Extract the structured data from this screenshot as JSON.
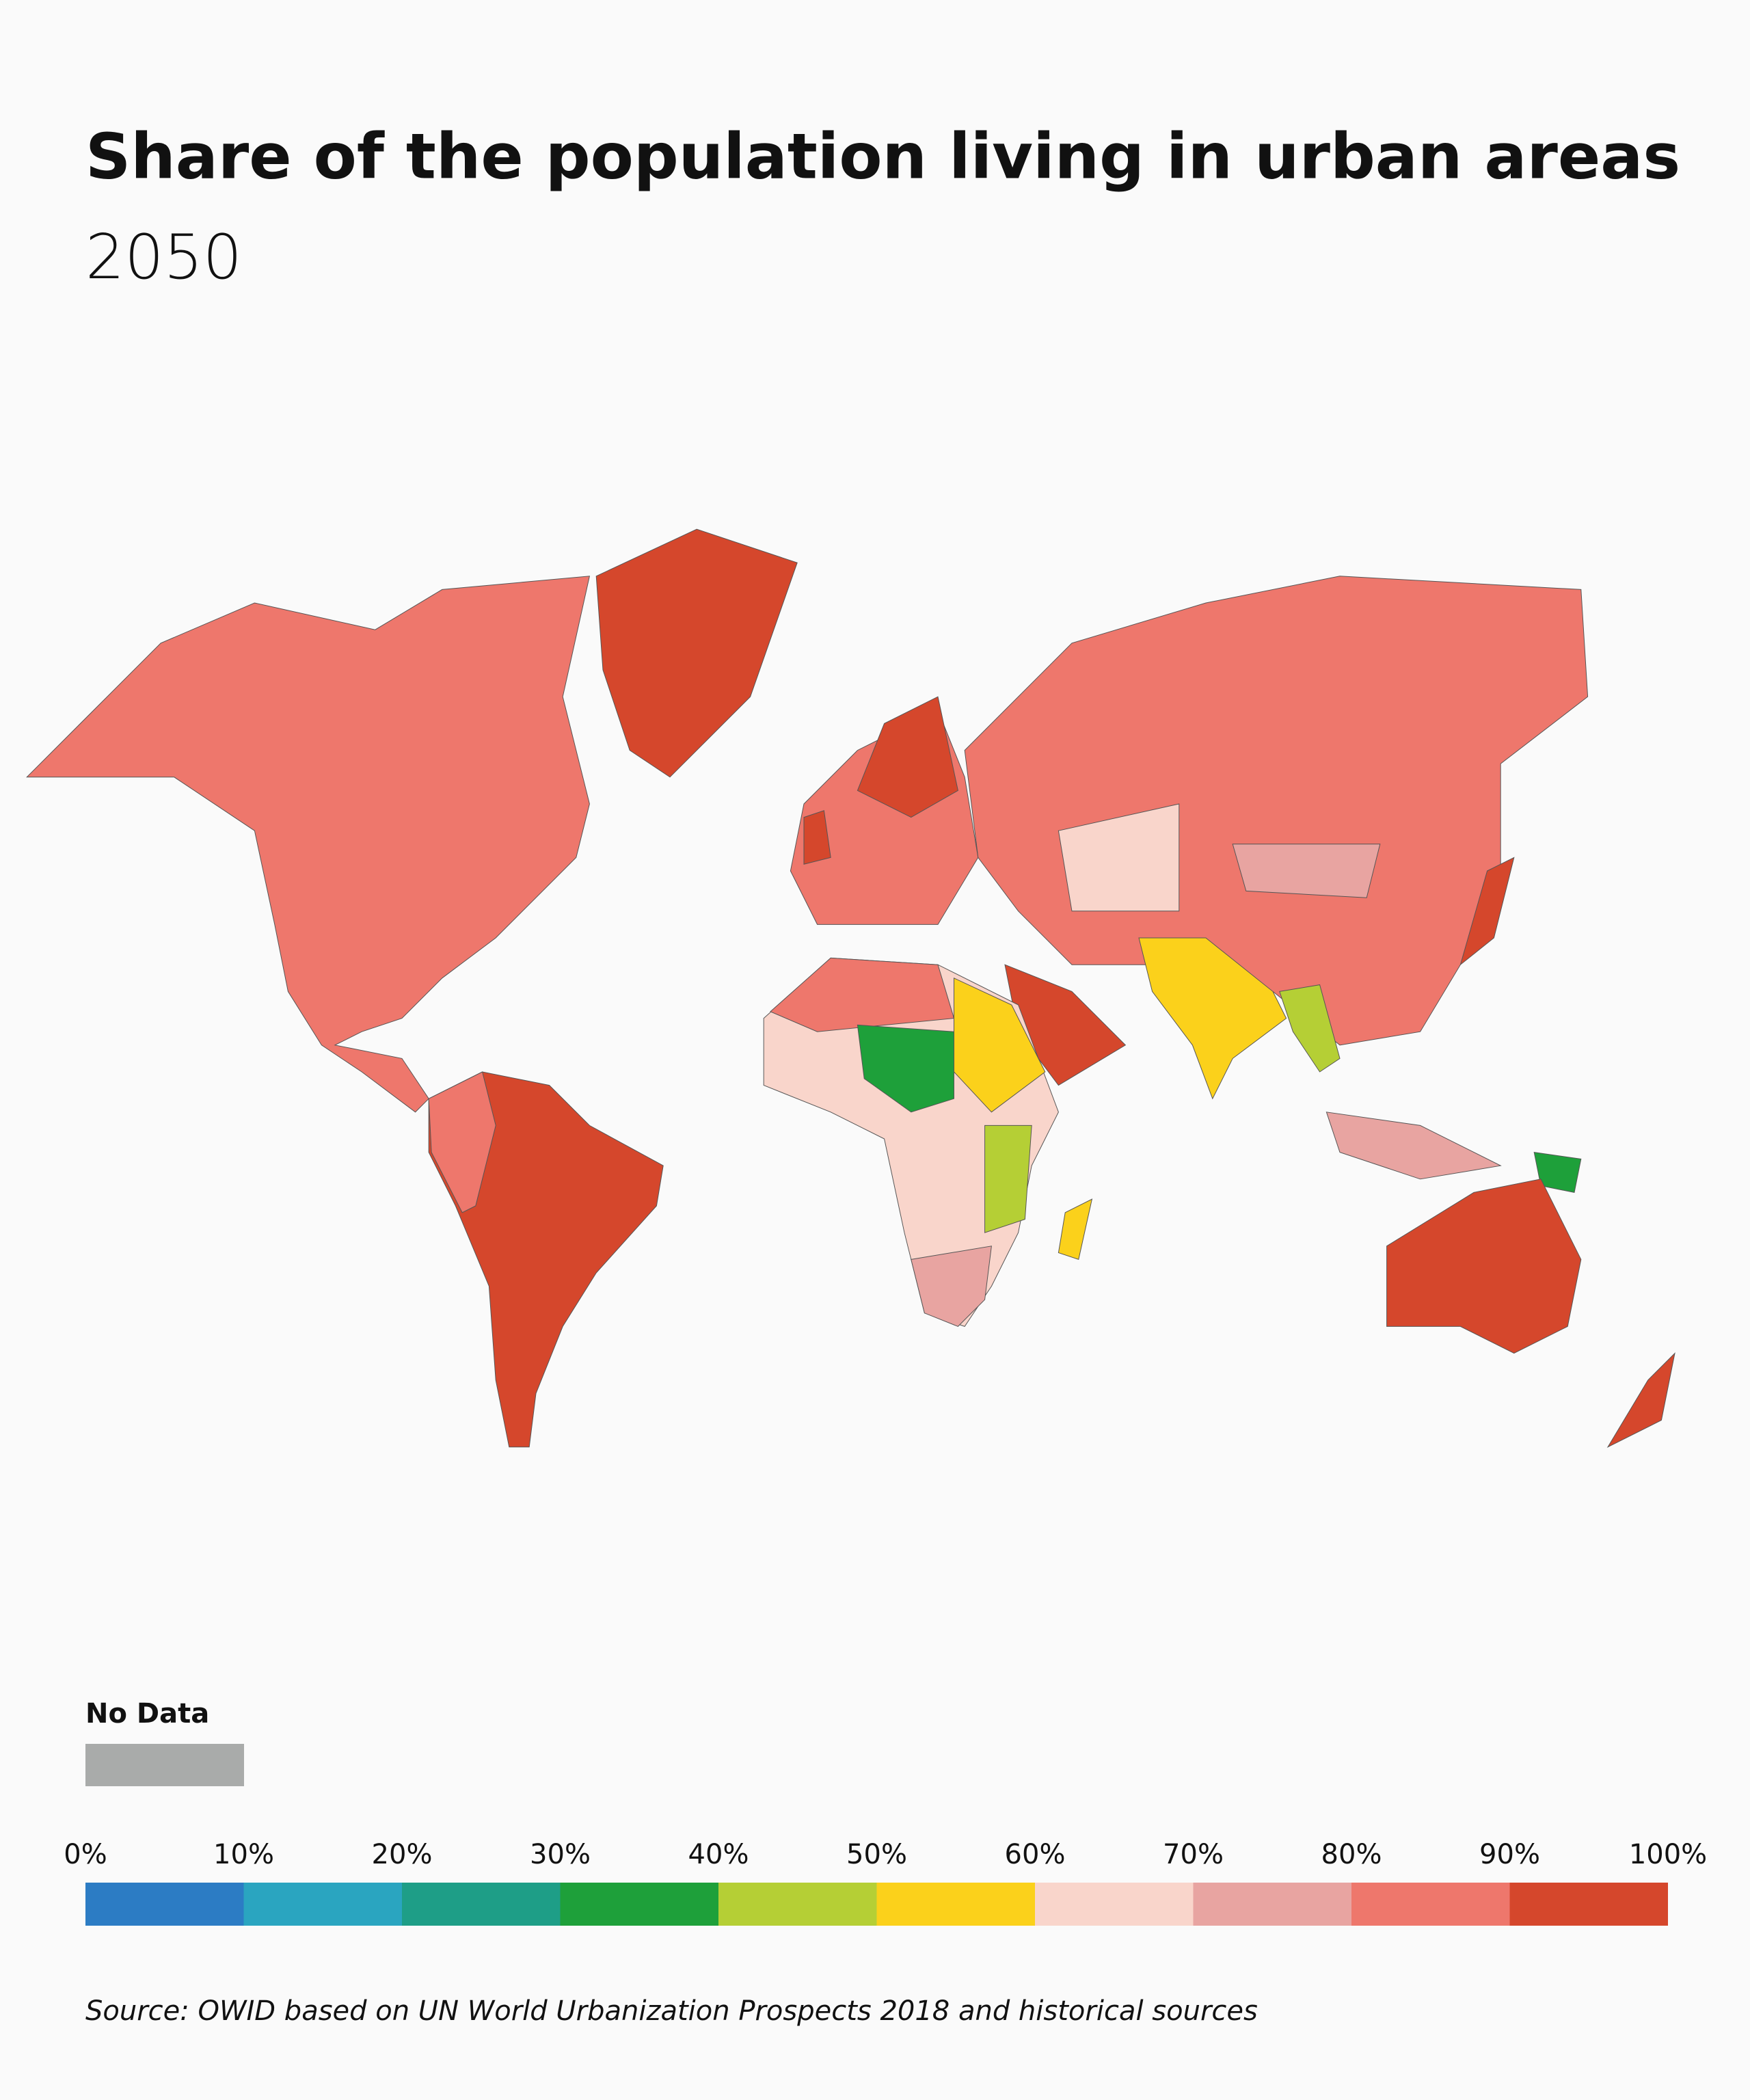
{
  "chart_data": {
    "type": "choropleth",
    "title": "Share of the population living in urban areas",
    "subtitle": "2050",
    "no_data": {
      "label": "No Data",
      "color": "#a9abaa"
    },
    "legend": {
      "ticks": [
        {
          "value": 0,
          "label": "0%"
        },
        {
          "value": 10,
          "label": "10%"
        },
        {
          "value": 20,
          "label": "20%"
        },
        {
          "value": 30,
          "label": "30%"
        },
        {
          "value": 40,
          "label": "40%"
        },
        {
          "value": 50,
          "label": "50%"
        },
        {
          "value": 60,
          "label": "60%"
        },
        {
          "value": 70,
          "label": "70%"
        },
        {
          "value": 80,
          "label": "80%"
        },
        {
          "value": 90,
          "label": "90%"
        },
        {
          "value": 100,
          "label": "100%"
        }
      ],
      "colors": [
        "#2c7cc4",
        "#2aa5c0",
        "#1e9e87",
        "#1ea03a",
        "#b5cf35",
        "#fbd11b",
        "#f9d5cb",
        "#e8a4a1",
        "#ee776c",
        "#d5472c"
      ]
    },
    "source": "Source: OWID based on UN World Urbanization Prospects 2018 and historical sources"
  }
}
